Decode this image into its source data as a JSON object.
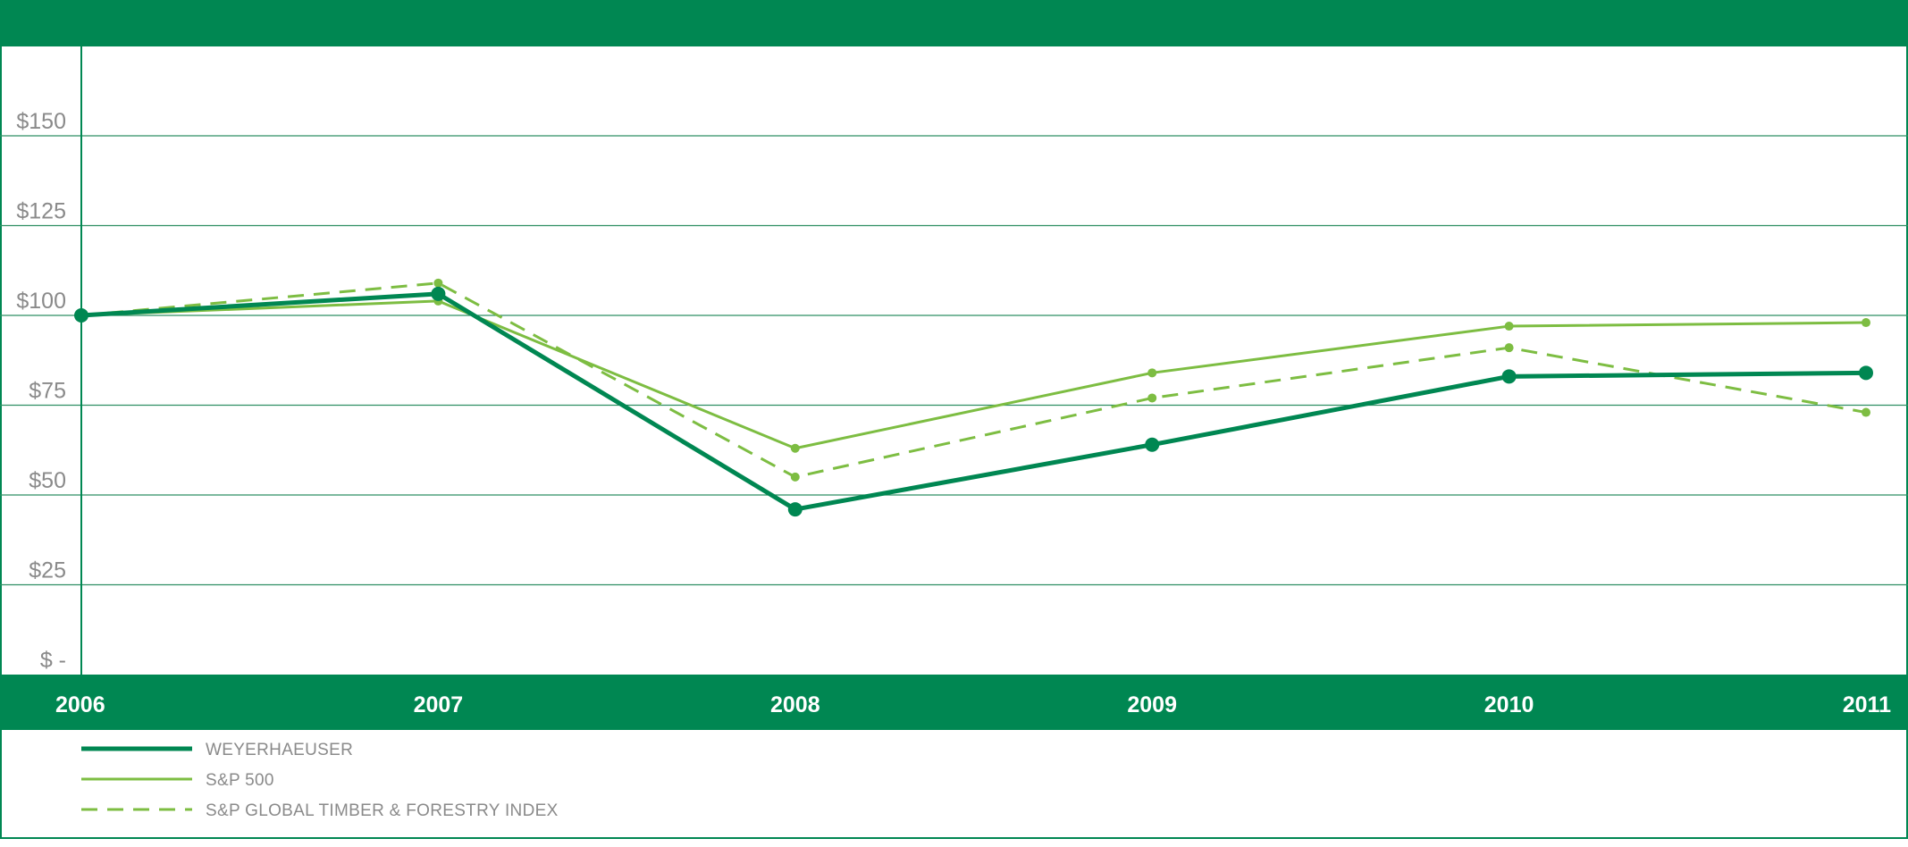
{
  "colors": {
    "band": "#008752",
    "grid": "#2f8f63",
    "weyerhaeuser": "#008752",
    "sp500": "#7dbd42",
    "timber_index": "#7dbd42",
    "tick_text": "#8a8a8a"
  },
  "chart_data": {
    "type": "line",
    "title": "",
    "xlabel": "",
    "ylabel": "",
    "categories": [
      "2006",
      "2007",
      "2008",
      "2009",
      "2010",
      "2011"
    ],
    "y_tick_labels": [
      "$ -",
      "$25",
      "$50",
      "$75",
      "$100",
      "$125",
      "$150"
    ],
    "y_tick_values": [
      0,
      25,
      50,
      75,
      100,
      125,
      150
    ],
    "ylim": [
      0,
      175
    ],
    "grid": true,
    "legend_position": "bottom-left",
    "series": [
      {
        "name": "WEYERHAEUSER",
        "style": "thick-solid-with-large-markers",
        "values": [
          100,
          106,
          46,
          64,
          83,
          84
        ]
      },
      {
        "name": "S&P 500",
        "style": "thin-solid-with-small-markers",
        "values": [
          100,
          104,
          63,
          84,
          97,
          98
        ]
      },
      {
        "name": "S&P GLOBAL TIMBER & FORESTRY INDEX",
        "style": "dashed-with-small-markers",
        "values": [
          100,
          109,
          55,
          77,
          91,
          73
        ]
      }
    ]
  }
}
